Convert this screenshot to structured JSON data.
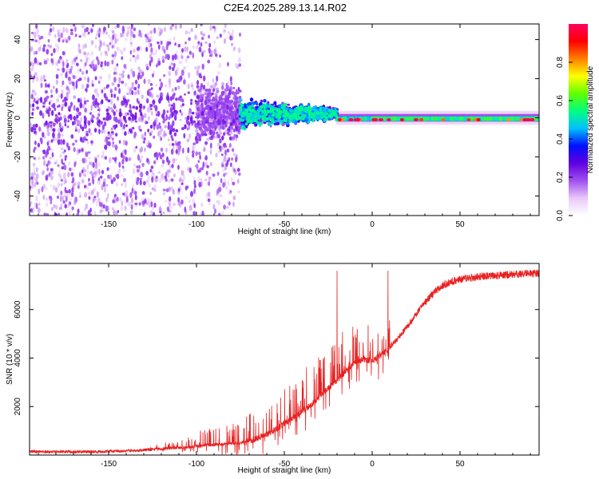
{
  "title": "C2E4.2025.289.13.14.R02",
  "colors": {
    "signal_line": "#e82020",
    "axis": "#000000",
    "background": "#ffffff"
  },
  "chart_data": [
    {
      "type": "heatmap",
      "title": "C2E4.2025.289.13.14.R02",
      "xlabel": "Height of straight line (km)",
      "ylabel": "Frequency (Hz)",
      "xlim": [
        -195,
        95
      ],
      "ylim": [
        -50,
        48
      ],
      "xticks": [
        -150,
        -100,
        -50,
        0,
        50
      ],
      "xtick_labels": [
        "-150",
        "-100",
        "-50",
        "0",
        "50"
      ],
      "yticks": [
        -40,
        -20,
        0,
        20,
        40
      ],
      "ytick_labels": [
        "-40",
        "-20",
        "0",
        "20",
        "40"
      ],
      "description": "Spectral amplitude vs height and frequency; scattered low-amplitude (purple) noise below -75 km, a dense band near 0 Hz from -75 km to -20 km, and a narrow high-amplitude (red) line near -1 Hz from -20 km to 95 km",
      "colorbar": {
        "label": "Normalized spectral amplitude",
        "ticks": [
          0.0,
          0.2,
          0.4,
          0.6,
          0.8
        ],
        "tick_labels": [
          "0.0",
          "0.2",
          "0.4",
          "0.6",
          "0.8"
        ],
        "range": [
          0,
          1
        ],
        "colormap": [
          "#ffffff",
          "#e8c8f8",
          "#a050f0",
          "#6000e0",
          "#0010ff",
          "#00c0ff",
          "#00ff80",
          "#60ff00",
          "#ffff00",
          "#ff8000",
          "#ff0000",
          "#ff0060"
        ]
      }
    },
    {
      "type": "line",
      "xlabel": "Height of straight line (km)",
      "ylabel": "SNR (10 * v/v)",
      "xlim": [
        -195,
        95
      ],
      "ylim": [
        0,
        7900
      ],
      "xticks": [
        -150,
        -100,
        -50,
        0,
        50
      ],
      "xtick_labels": [
        "-150",
        "-100",
        "-50",
        "0",
        "50"
      ],
      "yticks": [
        2000,
        4000,
        6000
      ],
      "ytick_labels": [
        "2000",
        "4000",
        "6000"
      ],
      "series": [
        {
          "name": "SNR",
          "x": [
            -195,
            -185,
            -175,
            -165,
            -155,
            -145,
            -135,
            -125,
            -115,
            -105,
            -95,
            -85,
            -75,
            -70,
            -65,
            -60,
            -55,
            -50,
            -45,
            -40,
            -35,
            -30,
            -25,
            -20,
            -15,
            -10,
            -5,
            0,
            5,
            10,
            15,
            20,
            25,
            30,
            35,
            40,
            45,
            50,
            55,
            60,
            65,
            70,
            75,
            80,
            85,
            90,
            95
          ],
          "values": [
            150,
            130,
            140,
            130,
            140,
            160,
            180,
            230,
            280,
            330,
            400,
            450,
            500,
            580,
            700,
            850,
            1050,
            1300,
            1550,
            1800,
            2050,
            2400,
            2750,
            3100,
            3450,
            3800,
            3950,
            3900,
            4100,
            4450,
            4850,
            5300,
            5800,
            6300,
            6700,
            7000,
            7150,
            7250,
            7300,
            7350,
            7380,
            7400,
            7420,
            7450,
            7470,
            7480,
            7500
          ],
          "spike_range": [
            -130,
            10
          ],
          "spike_peaks_x": [
            -20,
            9
          ]
        }
      ]
    }
  ]
}
